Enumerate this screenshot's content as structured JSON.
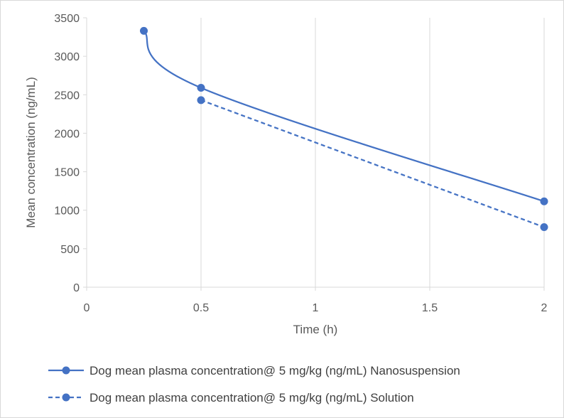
{
  "chart_data": {
    "type": "line",
    "title": "",
    "xlabel": "Time (h)",
    "ylabel": "Mean concentration (ng/mL)",
    "xlim": [
      0,
      2
    ],
    "ylim": [
      0,
      3500
    ],
    "x_ticks": [
      0,
      0.5,
      1,
      1.5,
      2
    ],
    "y_ticks": [
      0,
      500,
      1000,
      1500,
      2000,
      2500,
      3000,
      3500
    ],
    "grid": "vertical",
    "legend_position": "bottom",
    "series": [
      {
        "name": "Dog mean plasma concentration@ 5 mg/kg (ng/mL) Nanosuspension",
        "style": "solid",
        "smooth": true,
        "color": "#4472c4",
        "x": [
          0.25,
          0.5,
          2
        ],
        "y": [
          3330,
          2590,
          1115
        ]
      },
      {
        "name": "Dog mean plasma concentration@ 5 mg/kg (ng/mL) Solution",
        "style": "dashed",
        "smooth": false,
        "color": "#4472c4",
        "x": [
          0.5,
          2
        ],
        "y": [
          2430,
          780
        ]
      }
    ]
  }
}
